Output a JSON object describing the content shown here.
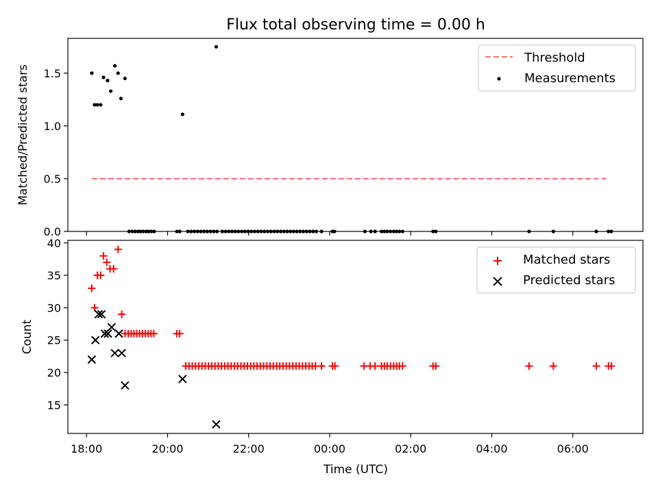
{
  "figure": {
    "title": "Flux total observing time = 0.00 h",
    "xlabel": "Time (UTC)",
    "x_ticks": [
      "18:00",
      "20:00",
      "22:00",
      "00:00",
      "02:00",
      "04:00",
      "06:00"
    ],
    "x_tick_hours": [
      18,
      20,
      22,
      24,
      26,
      28,
      30
    ],
    "x_range_hours": [
      17.54,
      31.73
    ]
  },
  "chart_data": [
    {
      "type": "scatter",
      "title": "Flux total observing time = 0.00 h",
      "xlabel": "",
      "ylabel": "Matched/Predicted stars",
      "xlim_hours": [
        17.54,
        31.73
      ],
      "ylim": [
        0.0,
        1.83
      ],
      "y_ticks": [
        "0.0",
        "0.5",
        "1.0",
        "1.5"
      ],
      "y_tick_values": [
        0.0,
        0.5,
        1.0,
        1.5
      ],
      "legend_position": "top-right",
      "threshold": {
        "name": "Threshold",
        "color": "#ff7070",
        "style": "dashed",
        "y": 0.5,
        "x_hours": [
          18.13,
          30.83
        ]
      },
      "series": [
        {
          "name": "Measurements",
          "color": "#000000",
          "marker": "dot",
          "points": [
            [
              18.13,
              1.5
            ],
            [
              18.2,
              1.2
            ],
            [
              18.27,
              1.2
            ],
            [
              18.35,
              1.2
            ],
            [
              18.42,
              1.46
            ],
            [
              18.52,
              1.43
            ],
            [
              18.6,
              1.33
            ],
            [
              18.7,
              1.57
            ],
            [
              18.78,
              1.5
            ],
            [
              18.85,
              1.26
            ],
            [
              18.95,
              1.45
            ],
            [
              20.37,
              1.11
            ],
            [
              21.2,
              1.75
            ],
            [
              19.05,
              0
            ],
            [
              19.13,
              0
            ],
            [
              19.2,
              0
            ],
            [
              19.27,
              0
            ],
            [
              19.33,
              0
            ],
            [
              19.4,
              0
            ],
            [
              19.47,
              0
            ],
            [
              19.53,
              0
            ],
            [
              19.6,
              0
            ],
            [
              19.67,
              0
            ],
            [
              20.23,
              0
            ],
            [
              20.3,
              0
            ],
            [
              20.5,
              0
            ],
            [
              20.58,
              0
            ],
            [
              20.66,
              0
            ],
            [
              20.74,
              0
            ],
            [
              20.82,
              0
            ],
            [
              20.9,
              0
            ],
            [
              20.98,
              0
            ],
            [
              21.06,
              0
            ],
            [
              21.14,
              0
            ],
            [
              21.22,
              0
            ],
            [
              21.35,
              0
            ],
            [
              21.43,
              0
            ],
            [
              21.51,
              0
            ],
            [
              21.59,
              0
            ],
            [
              21.67,
              0
            ],
            [
              21.75,
              0
            ],
            [
              21.83,
              0
            ],
            [
              21.91,
              0
            ],
            [
              21.99,
              0
            ],
            [
              22.07,
              0
            ],
            [
              22.15,
              0
            ],
            [
              22.23,
              0
            ],
            [
              22.31,
              0
            ],
            [
              22.39,
              0
            ],
            [
              22.47,
              0
            ],
            [
              22.55,
              0
            ],
            [
              22.63,
              0
            ],
            [
              22.71,
              0
            ],
            [
              22.79,
              0
            ],
            [
              22.87,
              0
            ],
            [
              22.95,
              0
            ],
            [
              23.03,
              0
            ],
            [
              23.11,
              0
            ],
            [
              23.19,
              0
            ],
            [
              23.27,
              0
            ],
            [
              23.35,
              0
            ],
            [
              23.43,
              0
            ],
            [
              23.51,
              0
            ],
            [
              23.59,
              0
            ],
            [
              23.67,
              0
            ],
            [
              23.8,
              0
            ],
            [
              24.07,
              0
            ],
            [
              24.12,
              0
            ],
            [
              24.87,
              0
            ],
            [
              25.02,
              0
            ],
            [
              25.12,
              0
            ],
            [
              25.28,
              0
            ],
            [
              25.35,
              0
            ],
            [
              25.42,
              0
            ],
            [
              25.5,
              0
            ],
            [
              25.58,
              0
            ],
            [
              25.65,
              0
            ],
            [
              25.72,
              0
            ],
            [
              25.8,
              0
            ],
            [
              26.55,
              0
            ],
            [
              26.62,
              0
            ],
            [
              28.92,
              0
            ],
            [
              29.52,
              0
            ],
            [
              30.58,
              0
            ],
            [
              30.88,
              0
            ],
            [
              30.95,
              0
            ]
          ]
        }
      ]
    },
    {
      "type": "scatter",
      "xlabel": "Time (UTC)",
      "ylabel": "Count",
      "xlim_hours": [
        17.54,
        31.73
      ],
      "ylim": [
        10.6,
        40.4
      ],
      "y_ticks": [
        "15",
        "20",
        "25",
        "30",
        "35",
        "40"
      ],
      "y_tick_values": [
        15,
        20,
        25,
        30,
        35,
        40
      ],
      "legend_position": "top-right",
      "series": [
        {
          "name": "Matched stars",
          "color": "#ff0000",
          "marker": "plus",
          "points": [
            [
              18.13,
              33
            ],
            [
              18.2,
              30
            ],
            [
              18.27,
              35
            ],
            [
              18.35,
              35
            ],
            [
              18.42,
              38
            ],
            [
              18.5,
              37
            ],
            [
              18.58,
              36
            ],
            [
              18.67,
              36
            ],
            [
              18.78,
              39
            ],
            [
              18.87,
              29
            ],
            [
              18.95,
              26
            ],
            [
              19.03,
              26
            ],
            [
              19.1,
              26
            ],
            [
              19.17,
              26
            ],
            [
              19.24,
              26
            ],
            [
              19.31,
              26
            ],
            [
              19.38,
              26
            ],
            [
              19.45,
              26
            ],
            [
              19.52,
              26
            ],
            [
              19.59,
              26
            ],
            [
              19.66,
              26
            ],
            [
              20.23,
              26
            ],
            [
              20.3,
              26
            ],
            [
              20.45,
              21
            ],
            [
              20.53,
              21
            ],
            [
              20.61,
              21
            ],
            [
              20.69,
              21
            ],
            [
              20.77,
              21
            ],
            [
              20.85,
              21
            ],
            [
              20.93,
              21
            ],
            [
              21.01,
              21
            ],
            [
              21.09,
              21
            ],
            [
              21.17,
              21
            ],
            [
              21.25,
              21
            ],
            [
              21.33,
              21
            ],
            [
              21.41,
              21
            ],
            [
              21.49,
              21
            ],
            [
              21.57,
              21
            ],
            [
              21.65,
              21
            ],
            [
              21.73,
              21
            ],
            [
              21.81,
              21
            ],
            [
              21.89,
              21
            ],
            [
              21.97,
              21
            ],
            [
              22.05,
              21
            ],
            [
              22.13,
              21
            ],
            [
              22.21,
              21
            ],
            [
              22.29,
              21
            ],
            [
              22.37,
              21
            ],
            [
              22.45,
              21
            ],
            [
              22.53,
              21
            ],
            [
              22.61,
              21
            ],
            [
              22.69,
              21
            ],
            [
              22.77,
              21
            ],
            [
              22.85,
              21
            ],
            [
              22.93,
              21
            ],
            [
              23.01,
              21
            ],
            [
              23.09,
              21
            ],
            [
              23.17,
              21
            ],
            [
              23.25,
              21
            ],
            [
              23.33,
              21
            ],
            [
              23.41,
              21
            ],
            [
              23.49,
              21
            ],
            [
              23.57,
              21
            ],
            [
              23.65,
              21
            ],
            [
              23.8,
              21
            ],
            [
              24.07,
              21
            ],
            [
              24.13,
              21
            ],
            [
              24.85,
              21
            ],
            [
              25.0,
              21
            ],
            [
              25.12,
              21
            ],
            [
              25.28,
              21
            ],
            [
              25.35,
              21
            ],
            [
              25.42,
              21
            ],
            [
              25.5,
              21
            ],
            [
              25.58,
              21
            ],
            [
              25.65,
              21
            ],
            [
              25.72,
              21
            ],
            [
              25.8,
              21
            ],
            [
              26.55,
              21
            ],
            [
              26.62,
              21
            ],
            [
              28.92,
              21
            ],
            [
              29.52,
              21
            ],
            [
              30.58,
              21
            ],
            [
              30.88,
              21
            ],
            [
              30.95,
              21
            ]
          ]
        },
        {
          "name": "Predicted stars",
          "color": "#000000",
          "marker": "cross",
          "points": [
            [
              18.13,
              22
            ],
            [
              18.22,
              25
            ],
            [
              18.3,
              29
            ],
            [
              18.37,
              29
            ],
            [
              18.45,
              26
            ],
            [
              18.53,
              26
            ],
            [
              18.62,
              27
            ],
            [
              18.7,
              23
            ],
            [
              18.8,
              26
            ],
            [
              18.87,
              23
            ],
            [
              18.95,
              18
            ],
            [
              20.37,
              19
            ],
            [
              21.2,
              12
            ]
          ]
        }
      ]
    }
  ]
}
